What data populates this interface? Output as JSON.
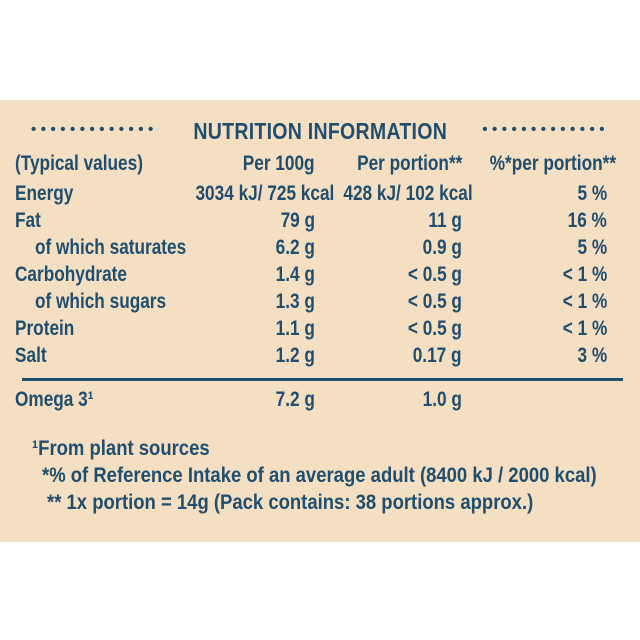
{
  "label": {
    "title": "NUTRITION INFORMATION",
    "dots_left": "•••••••••••••",
    "dots_right": "•••••••••••••",
    "colors": {
      "background": "#f5dfc3",
      "text": "#1f4e6f"
    },
    "header": {
      "col1": "(Typical values)",
      "col2": "Per 100g",
      "col3": "Per portion**",
      "col4": "%*per portion**"
    },
    "rows": [
      {
        "name": "Energy",
        "per100g": "3034 kJ/ 725 kcal",
        "per_portion": "428 kJ/ 102 kcal",
        "pct": "5 %"
      },
      {
        "name": "Fat",
        "per100g": "79 g",
        "per_portion": "11 g",
        "pct": "16 %"
      },
      {
        "name": "of which saturates",
        "per100g": "6.2 g",
        "per_portion": "0.9 g",
        "pct": "5 %"
      },
      {
        "name": "Carbohydrate",
        "per100g": "1.4 g",
        "per_portion": "< 0.5 g",
        "pct": "< 1 %"
      },
      {
        "name": "of which sugars",
        "per100g": "1.3 g",
        "per_portion": "< 0.5 g",
        "pct": "< 1 %"
      },
      {
        "name": "Protein",
        "per100g": "1.1 g",
        "per_portion": "< 0.5 g",
        "pct": "< 1 %"
      },
      {
        "name": "Salt",
        "per100g": "1.2 g",
        "per_portion": "0.17 g",
        "pct": "3 %"
      }
    ],
    "omega_row": {
      "name": "Omega 3¹",
      "per100g": "7.2 g",
      "per_portion": "1.0 g",
      "pct": ""
    },
    "footnotes": [
      "¹From plant sources",
      "*% of Reference Intake of an average adult (8400 kJ / 2000 kcal)",
      "** 1x portion = 14g (Pack contains: 38 portions approx.)"
    ]
  }
}
